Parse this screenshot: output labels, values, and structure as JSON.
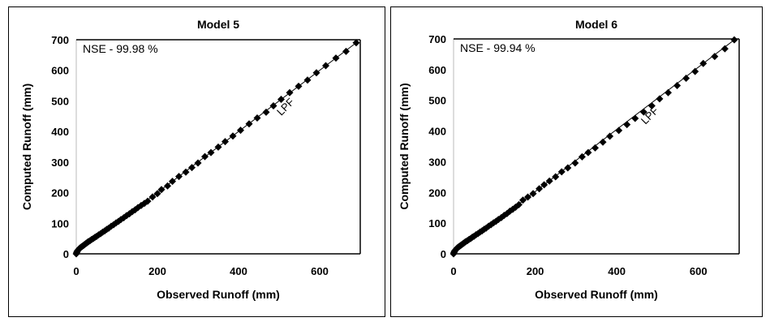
{
  "chart_data": [
    {
      "type": "scatter",
      "title": "Model 5",
      "xlabel": "Observed Runoff (mm)",
      "ylabel": "Computed Runoff (mm)",
      "xlim": [
        0,
        700
      ],
      "ylim": [
        0,
        700
      ],
      "xticks": [
        "0",
        "200",
        "400",
        "600"
      ],
      "yticks": [
        "0",
        "100",
        "200",
        "300",
        "400",
        "500",
        "600",
        "700"
      ],
      "grid": false,
      "annotation": "NSE - 99.98 %",
      "line_label": "LPF",
      "marker": "diamond",
      "marker_color": "#000000",
      "x": [
        0,
        1,
        2,
        3,
        5,
        7,
        9,
        11,
        13,
        15,
        18,
        21,
        24,
        27,
        30,
        34,
        38,
        42,
        46,
        50,
        55,
        60,
        65,
        70,
        75,
        80,
        86,
        92,
        98,
        104,
        110,
        117,
        124,
        131,
        138,
        145,
        152,
        160,
        168,
        176,
        188,
        200,
        210,
        225,
        237,
        253,
        270,
        285,
        300,
        317,
        332,
        350,
        367,
        386,
        405,
        426,
        446,
        468,
        486,
        505,
        526,
        548,
        570,
        592,
        615,
        640,
        665,
        690
      ],
      "y": [
        0,
        4,
        7,
        10,
        13,
        16,
        19,
        21,
        23,
        25,
        28,
        31,
        34,
        37,
        40,
        43,
        47,
        50,
        54,
        57,
        62,
        66,
        71,
        75,
        80,
        84,
        90,
        95,
        101,
        106,
        112,
        118,
        125,
        131,
        138,
        144,
        151,
        158,
        165,
        172,
        186,
        197,
        210,
        222,
        237,
        253,
        267,
        282,
        297,
        318,
        331,
        349,
        367,
        385,
        404,
        425,
        444,
        463,
        484,
        505,
        527,
        548,
        568,
        592,
        615,
        640,
        662,
        690
      ]
    },
    {
      "type": "scatter",
      "title": "Model 6",
      "xlabel": "Observed Runoff (mm)",
      "ylabel": "Computed Runoff (mm)",
      "xlim": [
        0,
        700
      ],
      "ylim": [
        0,
        700
      ],
      "xticks": [
        "0",
        "200",
        "400",
        "600"
      ],
      "yticks": [
        "0",
        "100",
        "200",
        "300",
        "400",
        "500",
        "600",
        "700"
      ],
      "grid": false,
      "annotation": "NSE - 99.94 %",
      "line_label": "LPF",
      "marker": "diamond",
      "marker_color": "#000000",
      "x": [
        0,
        1,
        2,
        3,
        5,
        7,
        9,
        11,
        13,
        15,
        18,
        21,
        24,
        27,
        30,
        34,
        38,
        42,
        46,
        50,
        55,
        60,
        65,
        70,
        75,
        80,
        86,
        92,
        98,
        104,
        110,
        117,
        124,
        131,
        138,
        145,
        152,
        160,
        170,
        182,
        195,
        210,
        222,
        235,
        250,
        265,
        280,
        298,
        315,
        330,
        347,
        366,
        383,
        405,
        425,
        445,
        466,
        486,
        505,
        526,
        548,
        570,
        592,
        612,
        640,
        665,
        688
      ],
      "y": [
        0,
        4,
        7,
        10,
        13,
        16,
        19,
        21,
        23,
        25,
        28,
        31,
        34,
        37,
        40,
        43,
        47,
        50,
        54,
        57,
        62,
        66,
        71,
        75,
        80,
        84,
        90,
        95,
        101,
        106,
        112,
        118,
        125,
        131,
        139,
        145,
        152,
        160,
        175,
        185,
        196,
        212,
        225,
        237,
        251,
        267,
        280,
        296,
        316,
        330,
        345,
        364,
        383,
        402,
        421,
        441,
        462,
        482,
        505,
        525,
        548,
        572,
        594,
        620,
        643,
        668,
        697
      ]
    }
  ]
}
